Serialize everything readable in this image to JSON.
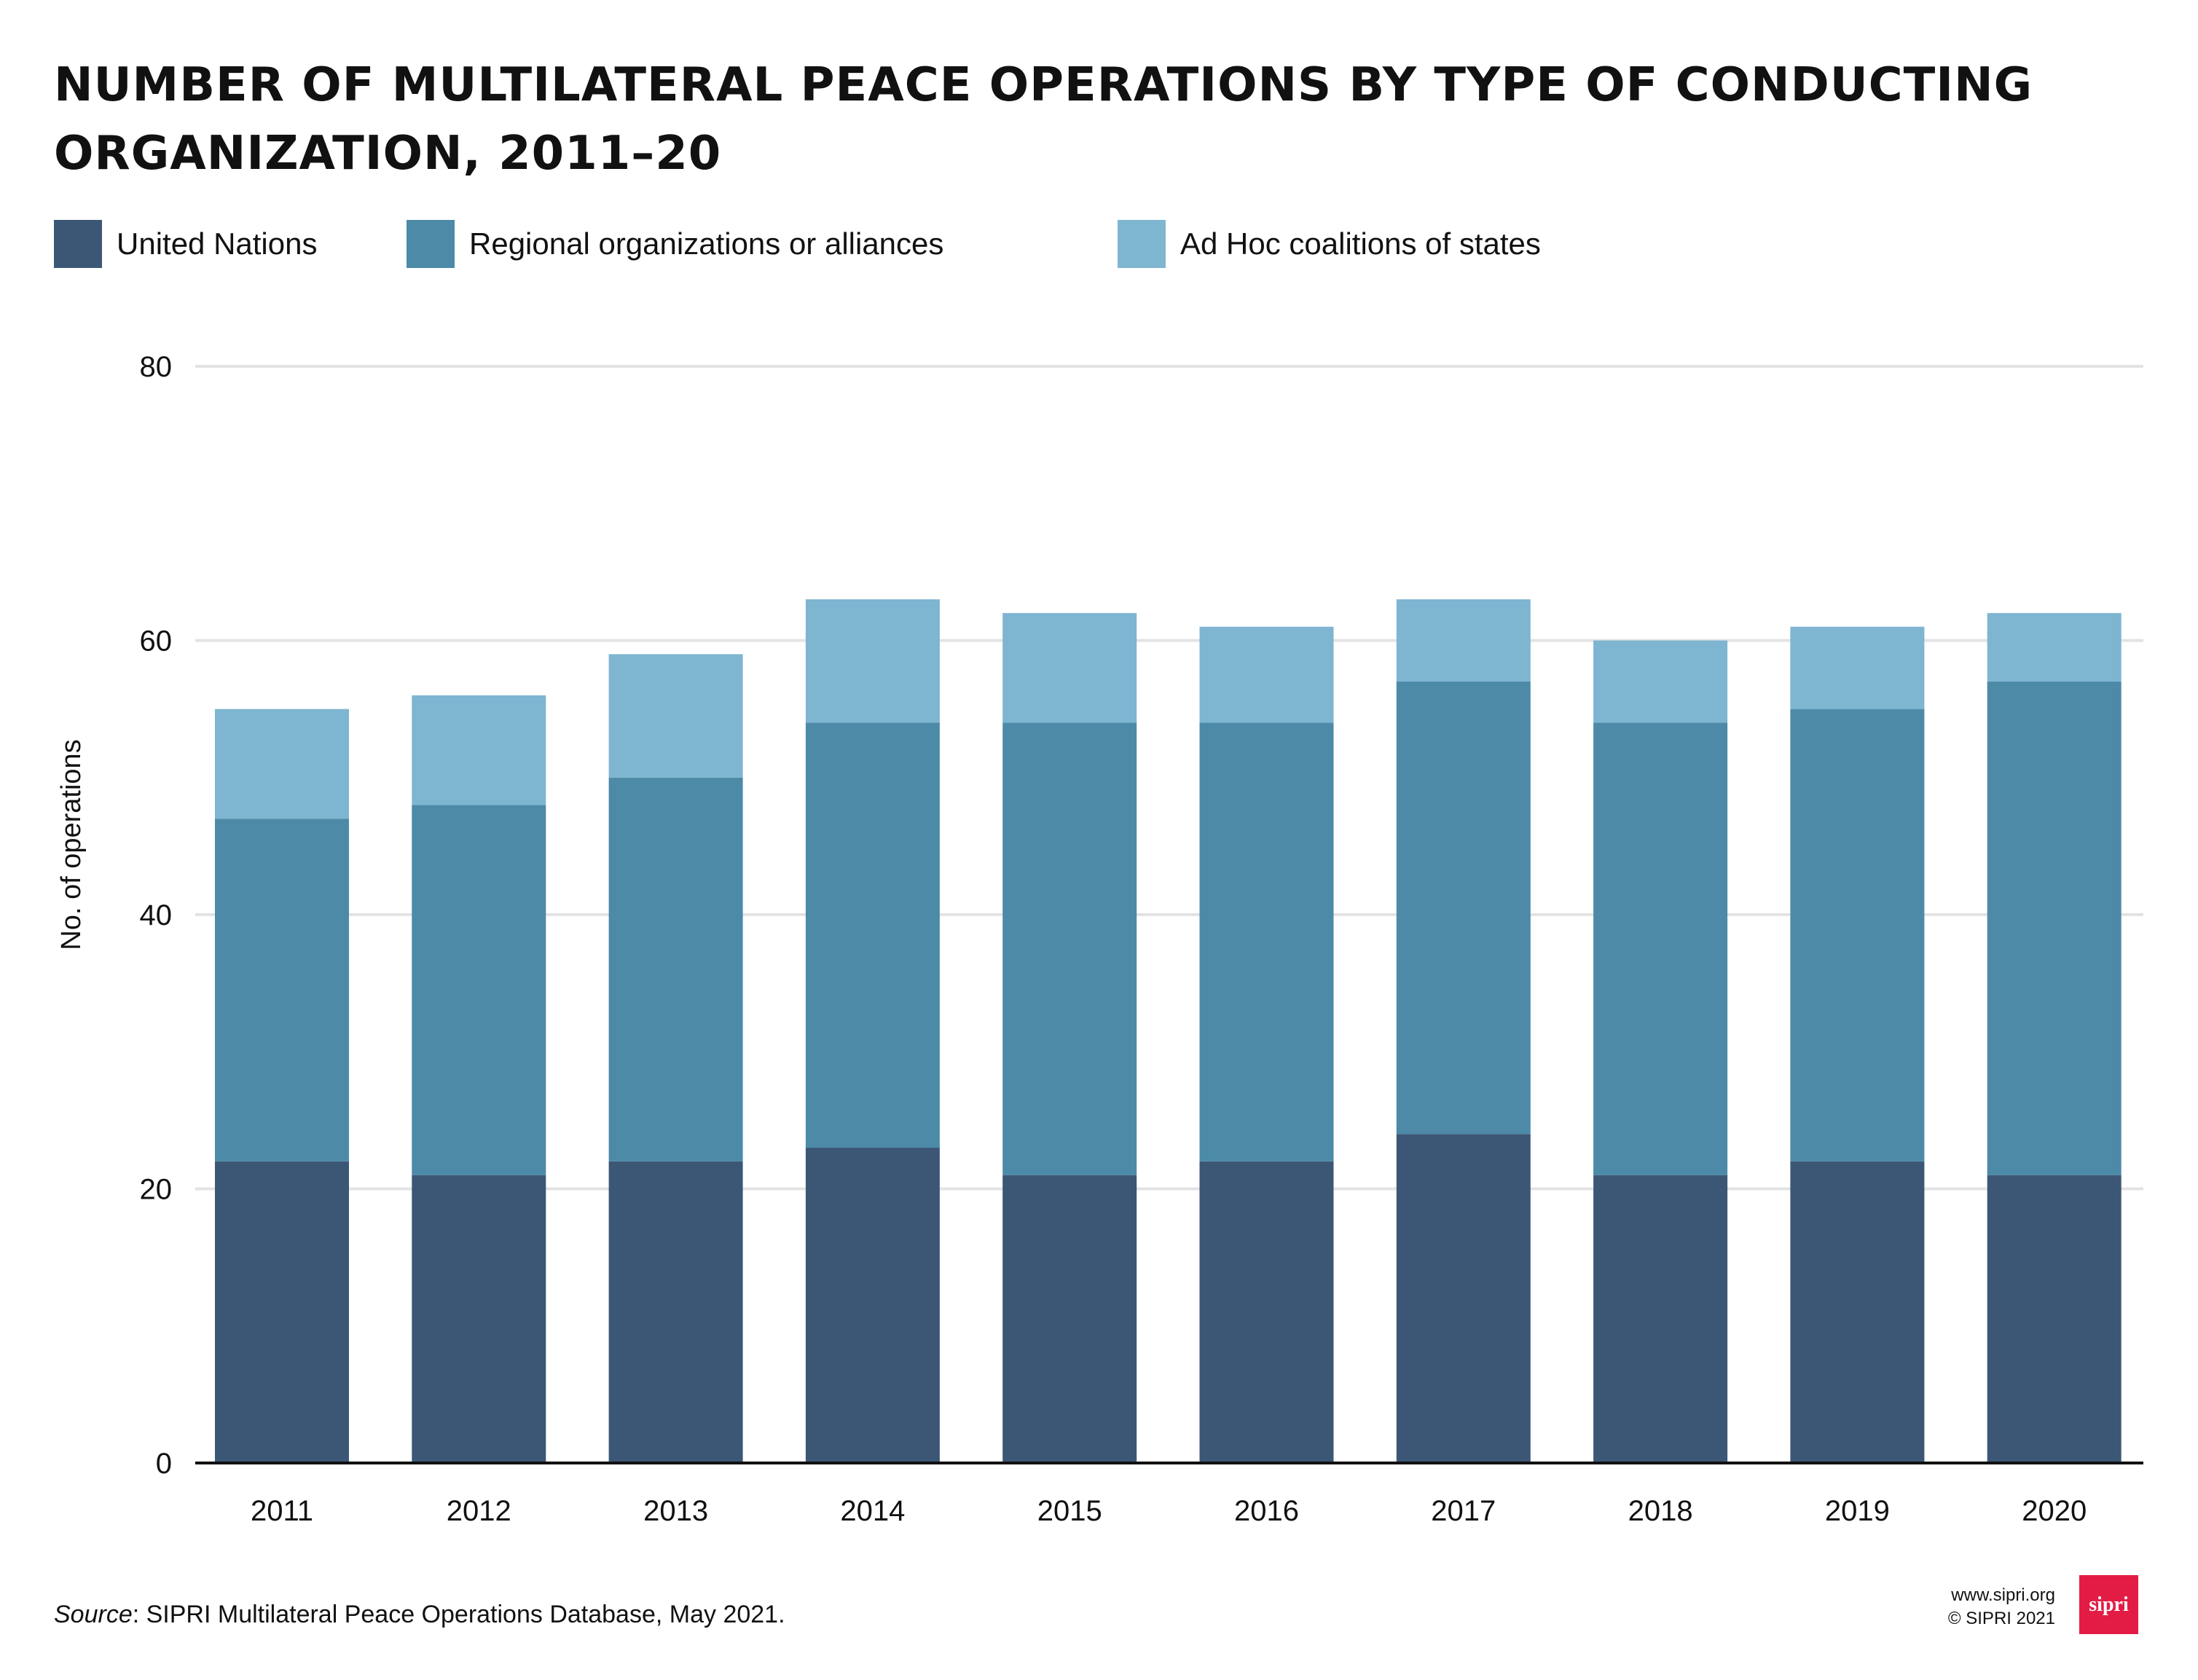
{
  "chart_data": {
    "type": "bar",
    "stacked": true,
    "title": "NUMBER OF MULTILATERAL PEACE OPERATIONS BY TYPE OF CONDUCTING ORGANIZATION, 2011–20",
    "xlabel": "",
    "ylabel": "No. of operations",
    "ylim": [
      0,
      80
    ],
    "yticks": [
      0,
      20,
      40,
      60,
      80
    ],
    "grid": true,
    "legend_position": "top-left",
    "categories": [
      "2011",
      "2012",
      "2013",
      "2014",
      "2015",
      "2016",
      "2017",
      "2018",
      "2019",
      "2020"
    ],
    "series": [
      {
        "name": "United Nations",
        "color": "#3c5775",
        "values": [
          22,
          21,
          22,
          23,
          21,
          22,
          24,
          21,
          22,
          21
        ]
      },
      {
        "name": "Regional organizations or alliances",
        "color": "#4c8aa8",
        "values": [
          25,
          27,
          28,
          31,
          33,
          32,
          33,
          33,
          33,
          36
        ]
      },
      {
        "name": "Ad Hoc coalitions of states",
        "color": "#7eb5d0",
        "values": [
          8,
          8,
          9,
          9,
          8,
          7,
          6,
          6,
          6,
          5
        ]
      }
    ]
  },
  "footer": {
    "source_label": "Source",
    "source_text": ": SIPRI Multilateral Peace Operations Database, May 2021.",
    "website": "www.sipri.org",
    "copyright": "© SIPRI 2021",
    "logo_text": "sipri",
    "logo_color": "#e31c45"
  }
}
